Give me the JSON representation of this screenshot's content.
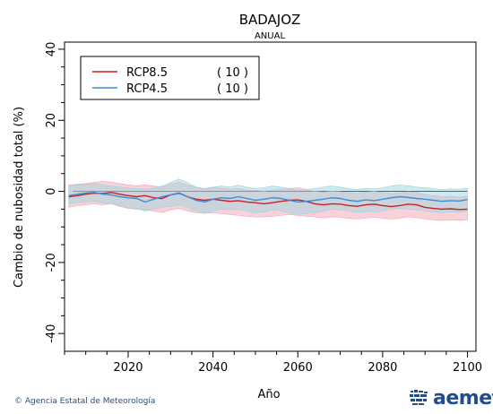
{
  "chart_data": {
    "type": "line",
    "title": "BADAJOZ",
    "subtitle": "ANUAL",
    "xlabel": "Año",
    "ylabel": "Cambio de nubosidad total (%)",
    "xlim": [
      2005,
      2102
    ],
    "ylim": [
      -45,
      42
    ],
    "xticks": [
      2020,
      2040,
      2060,
      2080,
      2100
    ],
    "yticks": [
      -40,
      -20,
      0,
      20,
      40
    ],
    "grid": false,
    "legend_position": "top-left",
    "x": [
      2006,
      2008,
      2010,
      2012,
      2014,
      2016,
      2018,
      2020,
      2022,
      2024,
      2026,
      2028,
      2030,
      2032,
      2034,
      2036,
      2038,
      2040,
      2042,
      2044,
      2046,
      2048,
      2050,
      2052,
      2054,
      2056,
      2058,
      2060,
      2062,
      2064,
      2066,
      2068,
      2070,
      2072,
      2074,
      2076,
      2078,
      2080,
      2082,
      2084,
      2086,
      2088,
      2090,
      2092,
      2094,
      2096,
      2098,
      2100
    ],
    "series": [
      {
        "name": "RCP8.5",
        "count_label": "( 10 )",
        "color": "#cc1f1f",
        "band_color": "#f4a6b4",
        "values": [
          -1.5,
          -1.2,
          -0.8,
          -0.5,
          -0.6,
          -0.3,
          -0.8,
          -1.2,
          -1.5,
          -1.2,
          -1.8,
          -2.0,
          -1.0,
          -0.5,
          -1.5,
          -2.2,
          -2.5,
          -2.2,
          -2.5,
          -2.8,
          -2.6,
          -3.0,
          -3.2,
          -3.5,
          -3.2,
          -2.8,
          -2.5,
          -2.4,
          -2.8,
          -3.5,
          -3.8,
          -3.5,
          -3.6,
          -4.0,
          -4.2,
          -3.8,
          -3.6,
          -4.0,
          -4.3,
          -4.0,
          -3.6,
          -3.8,
          -4.5,
          -4.8,
          -5.0,
          -4.9,
          -5.1,
          -5.0
        ],
        "lower": [
          -4.5,
          -4.0,
          -3.8,
          -3.5,
          -3.8,
          -3.5,
          -4.2,
          -4.8,
          -5.0,
          -5.2,
          -5.5,
          -6.0,
          -5.2,
          -4.8,
          -5.5,
          -6.0,
          -6.2,
          -6.0,
          -6.3,
          -6.5,
          -6.8,
          -7.0,
          -7.2,
          -7.2,
          -7.0,
          -6.8,
          -6.5,
          -6.8,
          -7.0,
          -7.2,
          -7.5,
          -7.2,
          -7.3,
          -7.6,
          -7.8,
          -7.5,
          -7.3,
          -7.6,
          -7.8,
          -7.6,
          -7.2,
          -7.4,
          -7.8,
          -8.0,
          -8.2,
          -8.0,
          -8.2,
          -8.0
        ],
        "upper": [
          1.8,
          2.0,
          2.2,
          2.5,
          2.8,
          2.6,
          2.2,
          1.8,
          1.6,
          1.8,
          1.5,
          1.2,
          2.0,
          2.5,
          1.8,
          1.2,
          0.8,
          1.0,
          0.9,
          0.6,
          0.8,
          0.4,
          0.3,
          0.1,
          0.4,
          0.6,
          0.8,
          1.0,
          0.5,
          0.0,
          -0.2,
          0.0,
          -0.1,
          -0.4,
          -0.5,
          -0.2,
          0.0,
          -0.3,
          -0.6,
          -0.4,
          -0.1,
          -0.3,
          -0.9,
          -1.2,
          -1.5,
          -1.4,
          -1.6,
          -1.4
        ]
      },
      {
        "name": "RCP4.5",
        "count_label": "( 10 )",
        "color": "#3b8fd9",
        "band_color": "#9dd3df",
        "values": [
          -1.2,
          -0.8,
          -0.5,
          -0.3,
          -0.8,
          -1.0,
          -1.5,
          -1.8,
          -2.0,
          -3.0,
          -2.2,
          -1.5,
          -1.0,
          -0.6,
          -1.5,
          -2.5,
          -3.0,
          -2.2,
          -1.8,
          -2.0,
          -1.5,
          -2.0,
          -2.5,
          -2.2,
          -1.8,
          -2.0,
          -2.5,
          -3.0,
          -2.8,
          -2.5,
          -2.2,
          -1.8,
          -2.0,
          -2.5,
          -2.8,
          -2.4,
          -2.6,
          -2.2,
          -1.8,
          -1.5,
          -1.7,
          -2.0,
          -2.2,
          -2.5,
          -2.8,
          -2.6,
          -2.7,
          -2.3
        ],
        "lower": [
          -3.5,
          -3.2,
          -3.0,
          -2.8,
          -3.2,
          -3.5,
          -4.0,
          -4.5,
          -4.8,
          -5.5,
          -5.0,
          -4.5,
          -4.2,
          -3.8,
          -4.5,
          -5.5,
          -6.0,
          -5.5,
          -5.0,
          -5.2,
          -5.0,
          -5.5,
          -6.0,
          -5.8,
          -5.2,
          -5.5,
          -6.0,
          -6.5,
          -6.2,
          -6.0,
          -5.5,
          -5.0,
          -5.2,
          -5.5,
          -6.0,
          -5.6,
          -5.8,
          -5.5,
          -5.0,
          -4.8,
          -5.0,
          -5.2,
          -5.5,
          -5.8,
          -6.0,
          -5.8,
          -5.9,
          -5.5
        ],
        "upper": [
          1.5,
          1.8,
          2.0,
          2.2,
          1.8,
          1.5,
          1.2,
          1.0,
          0.8,
          0.5,
          1.0,
          1.5,
          2.5,
          3.5,
          2.5,
          1.2,
          0.8,
          1.2,
          1.5,
          1.2,
          1.8,
          1.2,
          0.8,
          1.0,
          1.5,
          1.2,
          0.8,
          0.2,
          0.5,
          0.8,
          1.2,
          1.5,
          1.2,
          0.8,
          0.5,
          0.9,
          0.7,
          1.0,
          1.5,
          1.8,
          1.6,
          1.2,
          1.0,
          0.8,
          0.5,
          0.7,
          0.6,
          0.9
        ]
      }
    ]
  },
  "footer": {
    "credit": "Agencia Estatal de Meteorología",
    "copyright_symbol": "©",
    "logo_text": "aemet"
  }
}
